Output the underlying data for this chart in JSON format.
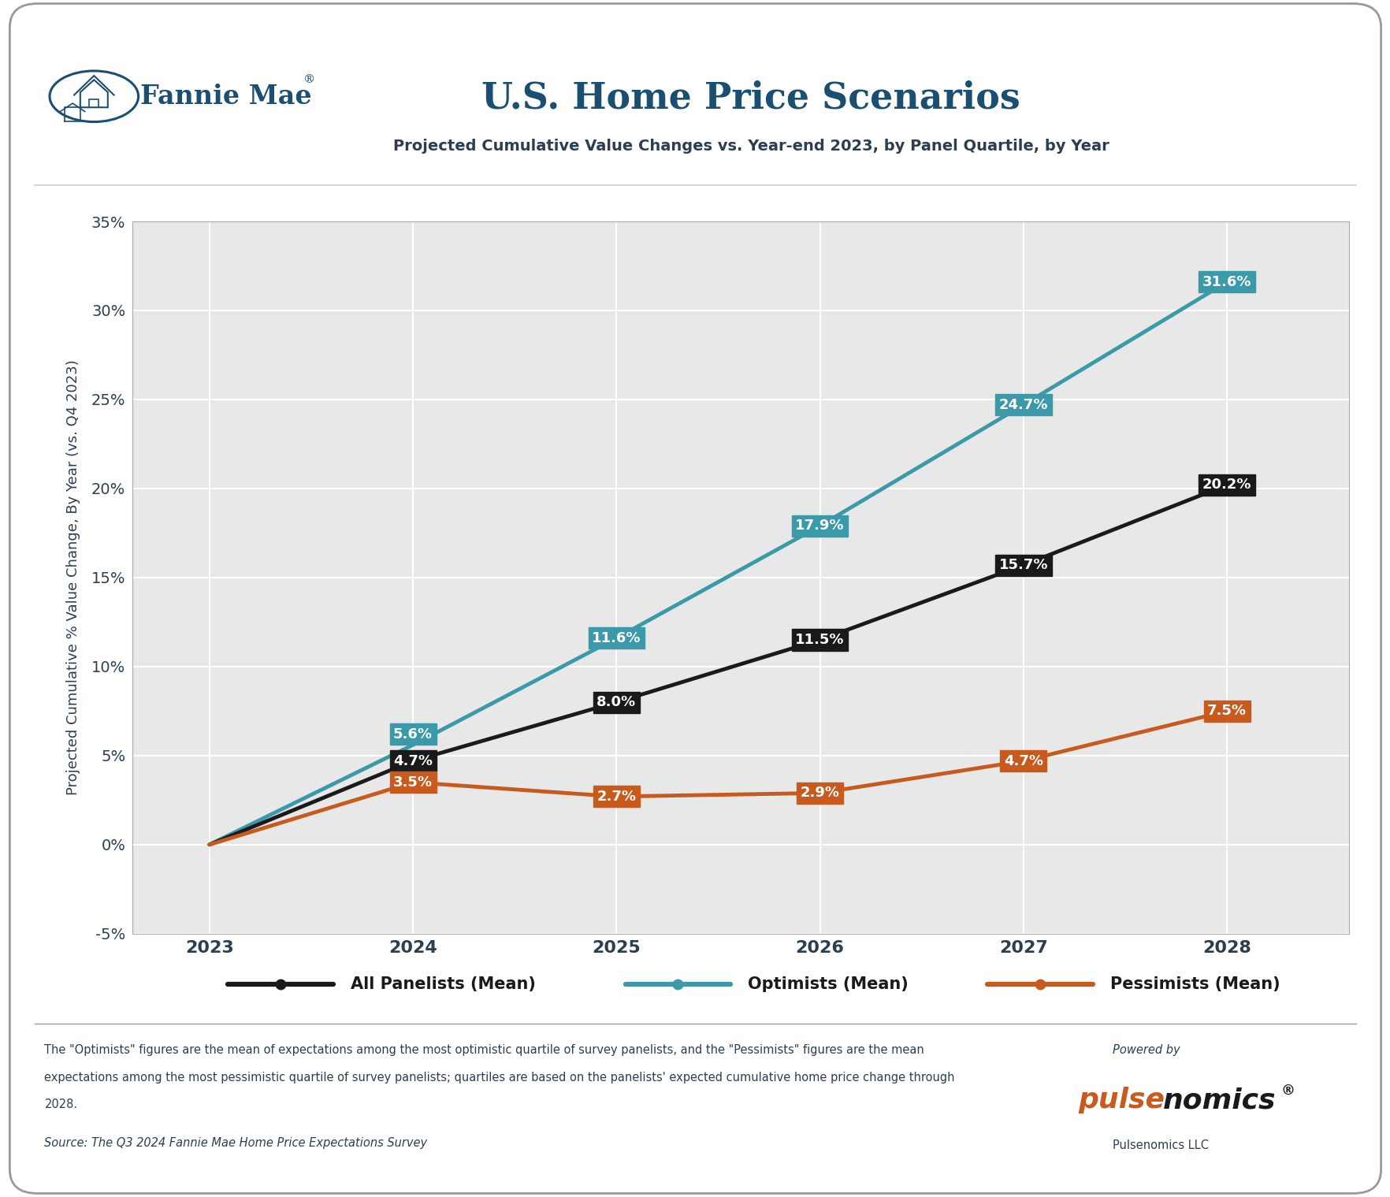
{
  "title": "U.S. Home Price Scenarios",
  "subtitle": "Projected Cumulative Value Changes vs. Year-end 2023, by Panel Quartile, by Year",
  "ylabel": "Projected Cumulative % Value Change, By Year (vs. Q4 2023)",
  "years": [
    2023,
    2024,
    2025,
    2026,
    2027,
    2028
  ],
  "all_panelists": [
    0.0,
    4.7,
    8.0,
    11.5,
    15.7,
    20.2
  ],
  "optimists": [
    0.0,
    5.6,
    11.6,
    17.9,
    24.7,
    31.6
  ],
  "pessimists": [
    0.0,
    3.5,
    2.7,
    2.9,
    4.7,
    7.5
  ],
  "all_panelists_labels": [
    "",
    "4.7%",
    "8.0%",
    "11.5%",
    "15.7%",
    "20.2%"
  ],
  "optimists_labels": [
    "",
    "5.6%",
    "11.6%",
    "17.9%",
    "24.7%",
    "31.6%"
  ],
  "pessimists_labels": [
    "",
    "3.5%",
    "2.7%",
    "2.9%",
    "4.7%",
    "7.5%"
  ],
  "color_all": "#1a1a1a",
  "color_optimists": "#3a9aaa",
  "color_pessimists": "#c85a1e",
  "ylim_min": -5,
  "ylim_max": 35,
  "yticks": [
    -5,
    0,
    5,
    10,
    15,
    20,
    25,
    30,
    35
  ],
  "ytick_labels": [
    "-5%",
    "0%",
    "5%",
    "10%",
    "15%",
    "20%",
    "25%",
    "30%",
    "35%"
  ],
  "chart_bg": "#e8e8e8",
  "outer_bg": "#ffffff",
  "title_color": "#1a4f72",
  "subtitle_color": "#2c3e50",
  "fannie_color": "#1a4f72",
  "legend_label_all": "All Panelists (Mean)",
  "legend_label_opt": "Optimists (Mean)",
  "legend_label_pess": "Pessimists (Mean)",
  "footnote_line1": "The \"Optimists\" figures are the mean of expectations among the most optimistic quartile of survey panelists, and the \"Pessimists\" figures are the mean",
  "footnote_line2": "expectations among the most pessimistic quartile of survey panelists; quartiles are based on the panelists' expected cumulative home price change through",
  "footnote_line3": "2028.",
  "source_line": "Source: The Q3 2024 Fannie Mae Home Price Expectations Survey",
  "line_width": 3.5,
  "label_fontsize": 13
}
